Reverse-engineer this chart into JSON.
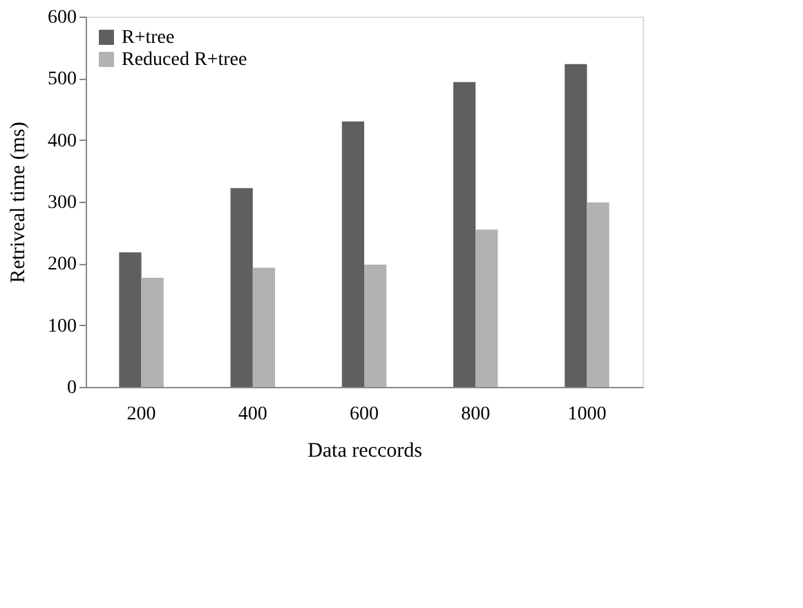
{
  "chart_data": {
    "type": "bar",
    "xlabel": "Data reccords",
    "ylabel": "Retriveal time (ms)",
    "categories": [
      "200",
      "400",
      "600",
      "800",
      "1000"
    ],
    "series": [
      {
        "name": "R+tree",
        "color": "#5f5f5f",
        "values": [
          218,
          322,
          430,
          494,
          523
        ]
      },
      {
        "name": "Reduced R+tree",
        "color": "#b2b2b2",
        "values": [
          177,
          193,
          198,
          255,
          299
        ]
      }
    ],
    "ylim": [
      0,
      600
    ],
    "yticks": [
      0,
      100,
      200,
      300,
      400,
      500,
      600
    ],
    "grid": false,
    "legend": "top left"
  }
}
